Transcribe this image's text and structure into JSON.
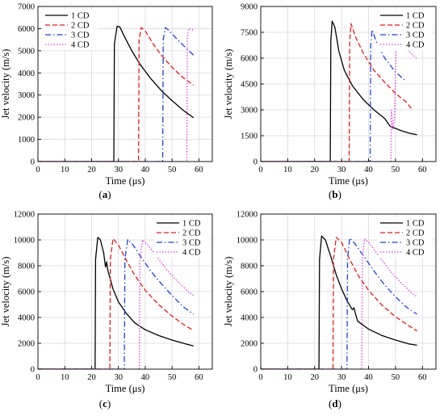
{
  "chart_data": [
    {
      "type": "line",
      "panel_label": "(a)",
      "panel_letter": "a",
      "xlabel": "Time (μs)",
      "ylabel": "Jet velocity (m/s)",
      "xlim": [
        0,
        65
      ],
      "ylim": [
        0,
        7000
      ],
      "xticks": [
        0,
        10,
        20,
        30,
        40,
        50,
        60
      ],
      "yticks": [
        0,
        1000,
        2000,
        3000,
        4000,
        5000,
        6000,
        7000
      ],
      "grid": true,
      "legend_position": "top-left",
      "series": [
        {
          "name": "1 CD",
          "color": "#000000",
          "dash": "solid",
          "x": [
            0,
            28.3,
            28.5,
            29.5,
            30.5,
            32,
            35,
            38,
            42,
            46,
            50,
            54,
            58
          ],
          "y": [
            0,
            0,
            5300,
            6100,
            6080,
            5700,
            5000,
            4400,
            3750,
            3200,
            2750,
            2330,
            1980
          ]
        },
        {
          "name": "2 CD",
          "color": "#e31a1c",
          "dash": "dashed",
          "x": [
            0,
            37.5,
            37.7,
            38.5,
            40,
            43,
            46,
            50,
            54,
            58
          ],
          "y": [
            0,
            0,
            5500,
            6050,
            5900,
            5300,
            4800,
            4250,
            3800,
            3450
          ]
        },
        {
          "name": "3 CD",
          "color": "#1f3fd6",
          "dash": "dashdot",
          "x": [
            0,
            46.5,
            46.7,
            47.5,
            49,
            52,
            55,
            58
          ],
          "y": [
            0,
            0,
            5500,
            6050,
            5900,
            5500,
            5150,
            4800
          ]
        },
        {
          "name": "4 CD",
          "color": "#e040e0",
          "dash": "dotted",
          "x": [
            0,
            55.5,
            55.7,
            56.2,
            57.5,
            58
          ],
          "y": [
            0,
            0,
            5600,
            6000,
            5970,
            5900
          ]
        }
      ]
    },
    {
      "type": "line",
      "panel_label": "(b)",
      "panel_letter": "b",
      "xlabel": "Time (μs)",
      "ylabel": "Jet velocity (m/s)",
      "xlim": [
        0,
        65
      ],
      "ylim": [
        0,
        9000
      ],
      "xticks": [
        0,
        10,
        20,
        30,
        40,
        50,
        60
      ],
      "yticks": [
        0,
        1500,
        3000,
        4500,
        6000,
        7500,
        9000
      ],
      "grid": true,
      "legend_position": "top-right",
      "series": [
        {
          "name": "1 CD",
          "color": "#000000",
          "dash": "solid",
          "x": [
            0,
            25.8,
            26,
            26.5,
            27.5,
            29,
            31,
            34,
            38,
            42,
            46,
            48,
            52,
            55,
            58
          ],
          "y": [
            0,
            0,
            7000,
            8150,
            7800,
            6400,
            5300,
            4400,
            3600,
            3000,
            2500,
            2050,
            1800,
            1650,
            1550
          ]
        },
        {
          "name": "2 CD",
          "color": "#e31a1c",
          "dash": "dashed",
          "x": [
            0,
            32.8,
            33,
            33.5,
            35,
            38,
            42,
            46,
            50,
            54,
            56
          ],
          "y": [
            0,
            0,
            7000,
            8000,
            7300,
            6300,
            5300,
            4600,
            3950,
            3450,
            3050
          ]
        },
        {
          "name": "3 CD",
          "color": "#1f3fd6",
          "dash": "dashdot",
          "x": [
            0,
            40.6,
            40.8,
            41.3,
            43,
            46,
            50,
            54
          ],
          "y": [
            0,
            0,
            6700,
            7650,
            6900,
            6000,
            5200,
            4650
          ]
        },
        {
          "name": "4 CD",
          "color": "#e040e0",
          "dash": "dotted",
          "x": [
            0,
            48.3,
            48.5,
            49,
            49.6,
            50.2,
            50.7,
            52,
            55,
            58
          ],
          "y": [
            0,
            0,
            3000,
            1900,
            2500,
            6500,
            7550,
            7200,
            6400,
            5950
          ]
        }
      ]
    },
    {
      "type": "line",
      "panel_label": "(c)",
      "panel_letter": "c",
      "xlabel": "Time (μs)",
      "ylabel": "Jet velocity (m/s)",
      "xlim": [
        0,
        65
      ],
      "ylim": [
        0,
        12000
      ],
      "xticks": [
        0,
        10,
        20,
        30,
        40,
        50,
        60
      ],
      "yticks": [
        0,
        2000,
        4000,
        6000,
        8000,
        10000,
        12000
      ],
      "grid": true,
      "legend_position": "top-right",
      "series": [
        {
          "name": "1 CD",
          "color": "#000000",
          "dash": "solid",
          "x": [
            0,
            21.3,
            21.5,
            22.3,
            23.3,
            24.5,
            25.2,
            25.6,
            26,
            26.5,
            28,
            30,
            33,
            36,
            40,
            45,
            50,
            55,
            58
          ],
          "y": [
            0,
            0,
            8500,
            10200,
            10000,
            9000,
            7900,
            8300,
            7700,
            7300,
            6200,
            5200,
            4300,
            3600,
            3050,
            2600,
            2250,
            1950,
            1800
          ]
        },
        {
          "name": "2 CD",
          "color": "#e31a1c",
          "dash": "dashed",
          "x": [
            0,
            26.8,
            27,
            28,
            30,
            33,
            36,
            40,
            45,
            50,
            55,
            58
          ],
          "y": [
            0,
            0,
            8500,
            10100,
            9600,
            8400,
            7300,
            6100,
            5000,
            4100,
            3350,
            3000
          ]
        },
        {
          "name": "3 CD",
          "color": "#1f3fd6",
          "dash": "dashdot",
          "x": [
            0,
            32.2,
            32.4,
            33.5,
            35.5,
            38,
            42,
            46,
            50,
            54,
            58
          ],
          "y": [
            0,
            0,
            8500,
            10050,
            9600,
            8800,
            7600,
            6600,
            5700,
            4850,
            4250
          ]
        },
        {
          "name": "4 CD",
          "color": "#e040e0",
          "dash": "dotted",
          "x": [
            0,
            37.8,
            38,
            39,
            41,
            44,
            48,
            52,
            56,
            58
          ],
          "y": [
            0,
            0,
            8500,
            10000,
            9600,
            8800,
            7700,
            6800,
            6000,
            5700
          ]
        }
      ]
    },
    {
      "type": "line",
      "panel_label": "(d)",
      "panel_letter": "d",
      "xlabel": "Time (μs)",
      "ylabel": "Jet velocity (m/s)",
      "xlim": [
        0,
        65
      ],
      "ylim": [
        0,
        12000
      ],
      "xticks": [
        0,
        10,
        20,
        30,
        40,
        50,
        60
      ],
      "yticks": [
        0,
        2000,
        4000,
        6000,
        8000,
        10000,
        12000
      ],
      "grid": true,
      "legend_position": "top-right",
      "series": [
        {
          "name": "1 CD",
          "color": "#000000",
          "dash": "solid",
          "x": [
            0,
            21.6,
            21.8,
            22.6,
            24,
            26,
            28,
            30,
            32,
            34,
            34.6,
            35.2,
            36,
            40,
            45,
            50,
            55,
            58
          ],
          "y": [
            0,
            0,
            8500,
            10300,
            10000,
            8700,
            7300,
            6200,
            5300,
            4600,
            4750,
            4250,
            3700,
            3100,
            2600,
            2250,
            1950,
            1850
          ]
        },
        {
          "name": "2 CD",
          "color": "#e31a1c",
          "dash": "dashed",
          "x": [
            0,
            26.8,
            27,
            28,
            30,
            33,
            36,
            40,
            45,
            50,
            55,
            58
          ],
          "y": [
            0,
            0,
            8500,
            10200,
            9800,
            8500,
            7300,
            6100,
            4950,
            4050,
            3350,
            2950
          ]
        },
        {
          "name": "3 CD",
          "color": "#1f3fd6",
          "dash": "dashdot",
          "x": [
            0,
            32,
            32.2,
            33,
            35,
            38,
            42,
            46,
            50,
            54,
            58
          ],
          "y": [
            0,
            0,
            8500,
            10150,
            9700,
            8800,
            7600,
            6500,
            5600,
            4800,
            4250
          ]
        },
        {
          "name": "4 CD",
          "color": "#e040e0",
          "dash": "dotted",
          "x": [
            0,
            37.5,
            37.7,
            38.5,
            40.5,
            44,
            48,
            52,
            56,
            58
          ],
          "y": [
            0,
            0,
            8500,
            10100,
            9700,
            8700,
            7600,
            6700,
            5900,
            5600
          ]
        }
      ]
    }
  ]
}
